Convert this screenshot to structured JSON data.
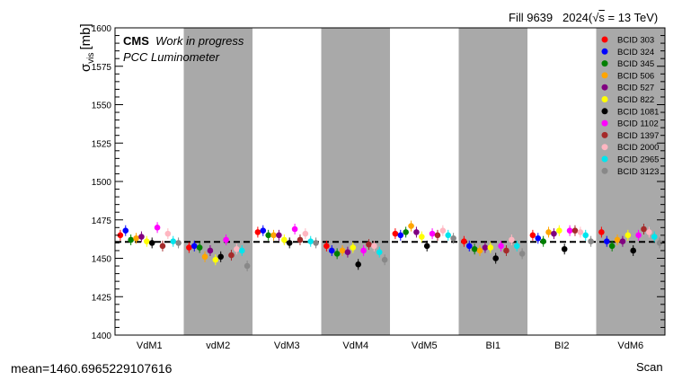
{
  "header": {
    "fill": "Fill 9639",
    "year": "2024",
    "energy_suffix": " = 13 TeV)",
    "experiment": "CMS",
    "status": "Work in progress",
    "detector": "PCC Luminometer"
  },
  "footer": {
    "mean_text": "mean=1460.6965229107616",
    "xlabel": "Scan"
  },
  "chart_data": {
    "type": "scatter",
    "title": "",
    "xlabel": "Scan",
    "ylabel": "σvis [mb]",
    "ylabel_main": "σ",
    "ylabel_sub": "vis",
    "ylabel_unit": "[mb]",
    "ylim": [
      1400,
      1600
    ],
    "yticks": [
      1400,
      1425,
      1450,
      1475,
      1500,
      1525,
      1550,
      1575,
      1600
    ],
    "grid": false,
    "legend_position": "top-right",
    "mean": 1460.6965229107616,
    "categories": [
      "VdM1",
      "vdM2",
      "VdM3",
      "VdM4",
      "VdM5",
      "BI1",
      "BI2",
      "VdM6"
    ],
    "shaded_categories": [
      "vdM2",
      "VdM4",
      "BI1",
      "VdM6"
    ],
    "series": [
      {
        "name": "BCID 303",
        "color": "#ff0000",
        "values": [
          1465,
          1457,
          1467,
          1458,
          1466,
          1461,
          1465,
          1467
        ]
      },
      {
        "name": "BCID 324",
        "color": "#0000ff",
        "values": [
          1468,
          1458,
          1468,
          1455,
          1465,
          1458,
          1463,
          1461
        ]
      },
      {
        "name": "BCID 345",
        "color": "#008000",
        "values": [
          1462,
          1457,
          1465,
          1453,
          1467,
          1456,
          1461,
          1458
        ]
      },
      {
        "name": "BCID 506",
        "color": "#ffa500",
        "values": [
          1463,
          1451,
          1465,
          1455,
          1471,
          1455,
          1467,
          1462
        ]
      },
      {
        "name": "BCID 527",
        "color": "#800080",
        "values": [
          1464,
          1455,
          1465,
          1454,
          1467,
          1457,
          1466,
          1461
        ]
      },
      {
        "name": "BCID 822",
        "color": "#ffff00",
        "values": [
          1461,
          1449,
          1462,
          1457,
          1464,
          1457,
          1468,
          1465
        ]
      },
      {
        "name": "BCID 1081",
        "color": "#000000",
        "values": [
          1460,
          1451,
          1460,
          1446,
          1458,
          1450,
          1456,
          1455
        ]
      },
      {
        "name": "BCID 1102",
        "color": "#ff00ff",
        "values": [
          1470,
          1462,
          1469,
          1455,
          1466,
          1458,
          1468,
          1465
        ]
      },
      {
        "name": "BCID 1397",
        "color": "#a52a2a",
        "values": [
          1458,
          1452,
          1462,
          1459,
          1465,
          1455,
          1468,
          1469
        ]
      },
      {
        "name": "BCID 2000",
        "color": "#ffb6c1",
        "values": [
          1466,
          1456,
          1466,
          1458,
          1468,
          1462,
          1467,
          1467
        ]
      },
      {
        "name": "BCID 2965",
        "color": "#00e5ee",
        "values": [
          1461,
          1455,
          1461,
          1454,
          1465,
          1458,
          1465,
          1464
        ]
      },
      {
        "name": "BCID 3123",
        "color": "#888888",
        "values": [
          1460,
          1445,
          1460,
          1449,
          1463,
          1453,
          1461,
          1460
        ]
      }
    ]
  }
}
